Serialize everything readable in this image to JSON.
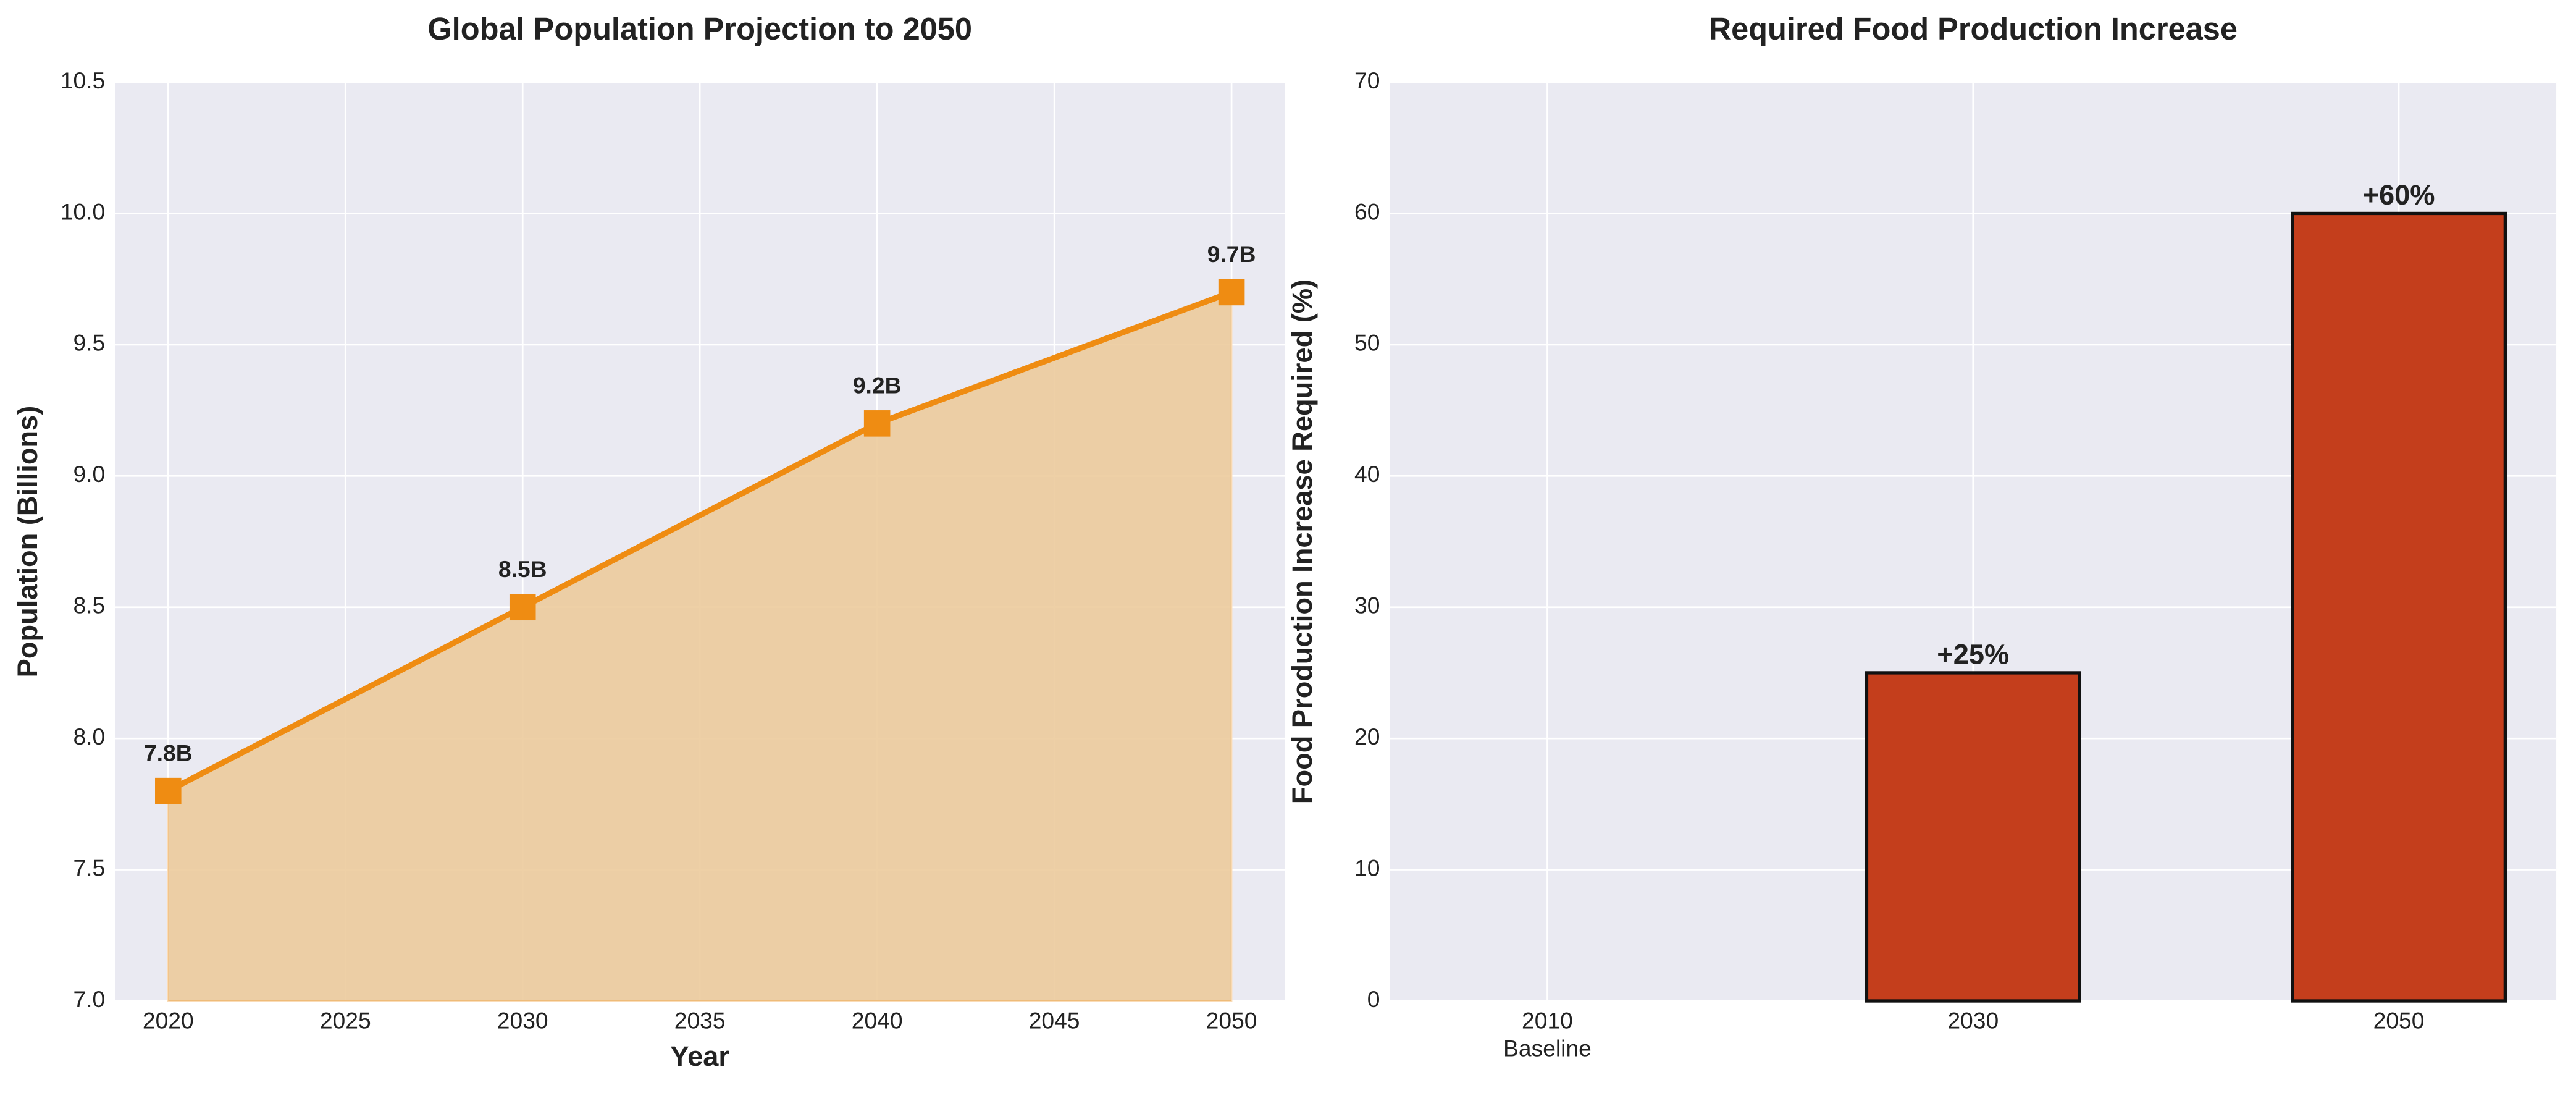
{
  "chart_data": [
    {
      "type": "line",
      "title": "Global Population Projection to 2050",
      "xlabel": "Year",
      "ylabel": "Population (Billions)",
      "x": [
        2020,
        2030,
        2040,
        2050
      ],
      "values": [
        7.8,
        8.5,
        9.2,
        9.7
      ],
      "value_labels": [
        "7.8B",
        "8.5B",
        "9.2B",
        "9.7B"
      ],
      "color": "#ef8c12",
      "fill_color": "#eccb9c",
      "xlim": [
        2018.5,
        2051.5
      ],
      "xticks": [
        2020,
        2025,
        2030,
        2035,
        2040,
        2045,
        2050
      ],
      "ylim": [
        7,
        10.5
      ],
      "yticks": [
        {
          "value": 7,
          "label": "7.0"
        },
        7.5,
        {
          "value": 8,
          "label": "8.0"
        },
        8.5,
        {
          "value": 9,
          "label": "9.0"
        },
        9.5,
        {
          "value": 10,
          "label": "10.0"
        },
        10.5
      ],
      "grid": true
    },
    {
      "type": "bar",
      "title": "Required Food Production Increase",
      "ylabel": "Food Production Increase Required (%)",
      "categories": [
        "2010",
        "2030",
        "2050"
      ],
      "category_sublabels": [
        "Baseline",
        null,
        null
      ],
      "values": [
        0,
        25,
        60
      ],
      "value_labels": [
        null,
        "+25%",
        "+60%"
      ],
      "color": "#c43e1c",
      "edge_color": "#111111",
      "ylim": [
        0,
        70
      ],
      "yticks": [
        0,
        10,
        20,
        30,
        40,
        50,
        60,
        70
      ],
      "grid": true
    }
  ]
}
